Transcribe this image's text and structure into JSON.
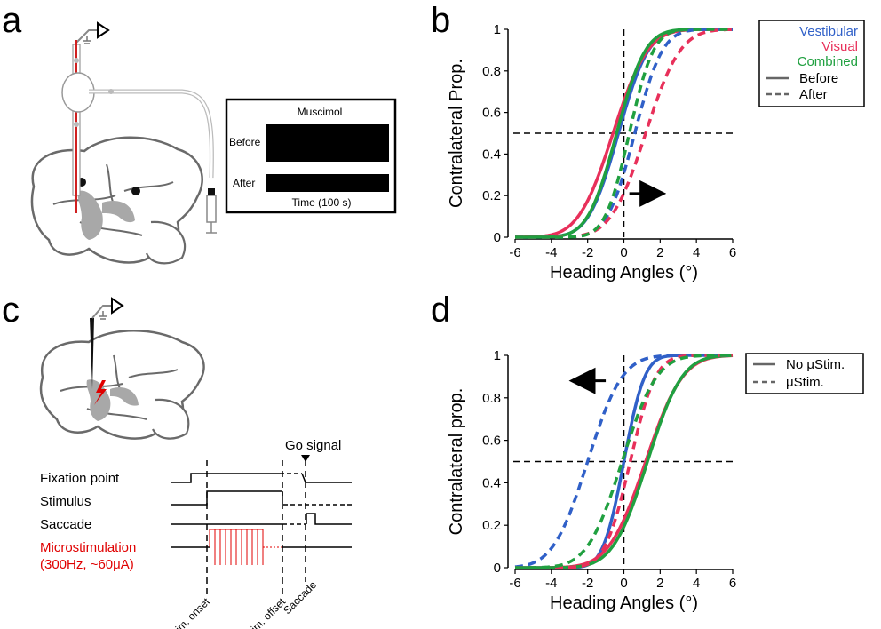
{
  "panels": {
    "a": {
      "letter": "a",
      "inset_title": "Muscimol",
      "trace_before": "Before",
      "trace_after": "After",
      "time_label": "Time (100 s)"
    },
    "b": {
      "letter": "b"
    },
    "c": {
      "letter": "c",
      "rows": {
        "fixation": "Fixation point",
        "stimulus": "Stimulus",
        "saccade": "Saccade",
        "micro": "Microstimulation",
        "micro_params": "(300Hz, ~60μA)"
      },
      "go_signal": "Go signal",
      "events": {
        "onset": "Stim. onset",
        "offset": "Stim. offset",
        "saccade": "Saccade"
      }
    },
    "d": {
      "letter": "d"
    }
  },
  "colors": {
    "vestibular": "#3060c8",
    "visual": "#e8305a",
    "combined": "#20a040",
    "microstim": "#e00000"
  },
  "chart_data": [
    {
      "id": "b",
      "type": "line",
      "xlabel": "Heading Angles (°)",
      "ylabel": "Contralateral Prop.",
      "xlim": [
        -6,
        6
      ],
      "ylim": [
        0,
        1
      ],
      "xticks": [
        "-6",
        "-4",
        "-2",
        "0",
        "2",
        "4",
        "6"
      ],
      "yticks": [
        "0",
        "0.2",
        "0.4",
        "0.6",
        "0.8",
        "1"
      ],
      "reference_lines": {
        "x": 0,
        "y": 0.5
      },
      "arrow": "right",
      "legend": {
        "placement": "right",
        "entries": [
          "Vestibular",
          "Visual",
          "Combined",
          "Before",
          "After"
        ]
      },
      "series": [
        {
          "name": "Vestibular",
          "style": "solid",
          "mu": -0.3,
          "sigma": 1.3
        },
        {
          "name": "Visual",
          "style": "solid",
          "mu": -0.6,
          "sigma": 1.5
        },
        {
          "name": "Combined",
          "style": "solid",
          "mu": -0.4,
          "sigma": 1.25
        },
        {
          "name": "Vestibular",
          "style": "dashed",
          "mu": 0.6,
          "sigma": 1.2
        },
        {
          "name": "Visual",
          "style": "dashed",
          "mu": 1.2,
          "sigma": 1.5
        },
        {
          "name": "Combined",
          "style": "dashed",
          "mu": 0.3,
          "sigma": 1.05
        }
      ]
    },
    {
      "id": "d",
      "type": "line",
      "xlabel": "Heading Angles (°)",
      "ylabel": "Contralateral prop.",
      "xlim": [
        -6,
        6
      ],
      "ylim": [
        0,
        1
      ],
      "xticks": [
        "-6",
        "-4",
        "-2",
        "0",
        "2",
        "4",
        "6"
      ],
      "yticks": [
        "0",
        "0.2",
        "0.4",
        "0.6",
        "0.8",
        "1"
      ],
      "reference_lines": {
        "x": 0,
        "y": 0.5
      },
      "arrow": "left",
      "legend": {
        "placement": "right",
        "entries": [
          "No μStim.",
          "μStim."
        ]
      },
      "series": [
        {
          "name": "Vestibular",
          "style": "solid",
          "mu": 0.0,
          "sigma": 0.9
        },
        {
          "name": "Visual",
          "style": "solid",
          "mu": 1.2,
          "sigma": 1.6
        },
        {
          "name": "Combined",
          "style": "solid",
          "mu": 1.3,
          "sigma": 1.5
        },
        {
          "name": "Vestibular",
          "style": "dashed",
          "mu": -2.0,
          "sigma": 1.5
        },
        {
          "name": "Visual",
          "style": "dashed",
          "mu": 0.35,
          "sigma": 1.1
        },
        {
          "name": "Combined",
          "style": "dashed",
          "mu": -0.1,
          "sigma": 1.5
        }
      ]
    }
  ]
}
